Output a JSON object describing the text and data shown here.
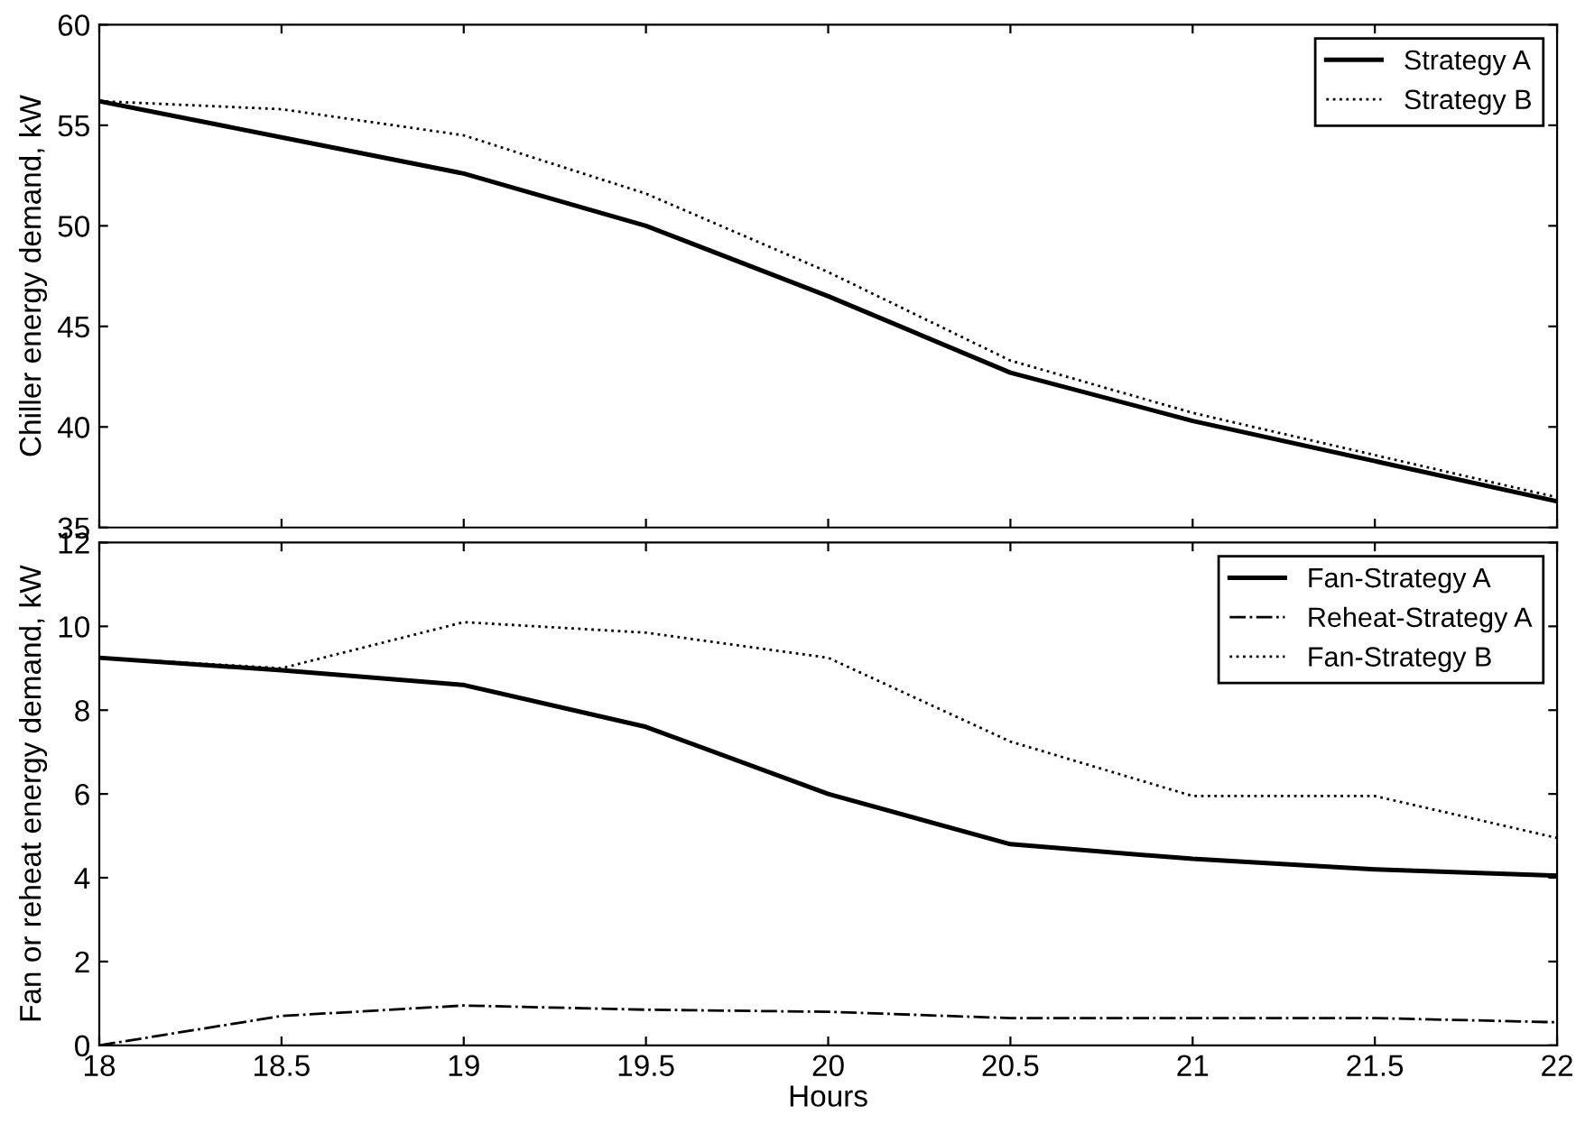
{
  "chart_data": [
    {
      "type": "line",
      "ylabel": "Chiller energy demand, kW",
      "x": [
        18,
        18.5,
        19,
        19.5,
        20,
        20.5,
        21,
        21.5,
        22
      ],
      "xlim": [
        18,
        22
      ],
      "xticks": [
        {
          "value": 18,
          "label": null
        },
        {
          "value": 18.5,
          "label": null
        },
        {
          "value": 19,
          "label": null
        },
        {
          "value": 19.5,
          "label": null
        },
        {
          "value": 20,
          "label": null
        },
        {
          "value": 20.5,
          "label": null
        },
        {
          "value": 21,
          "label": null
        },
        {
          "value": 21.5,
          "label": null
        },
        {
          "value": 22,
          "label": null
        }
      ],
      "ylim": [
        35,
        60
      ],
      "yticks": [
        35,
        40,
        45,
        50,
        55,
        60
      ],
      "tick_labels": "y",
      "legend": "top right",
      "grid": false,
      "series": [
        {
          "name": "Strategy A",
          "color": "#000000",
          "line_style": "solid",
          "values": [
            56.2,
            54.4,
            52.6,
            50.0,
            46.5,
            42.7,
            40.3,
            38.3,
            36.3
          ]
        },
        {
          "name": "Strategy B",
          "color": "#000000",
          "line_style": "dotted",
          "values": [
            56.2,
            55.8,
            54.5,
            51.6,
            47.7,
            43.3,
            40.7,
            38.6,
            36.5
          ]
        }
      ]
    },
    {
      "type": "line",
      "xlabel": "Hours",
      "ylabel": "Fan or reheat energy demand, kW",
      "x": [
        18,
        18.5,
        19,
        19.5,
        20,
        20.5,
        21,
        21.5,
        22
      ],
      "xlim": [
        18,
        22
      ],
      "xticks": [
        18,
        18.5,
        19,
        19.5,
        20,
        20.5,
        21,
        21.5,
        22
      ],
      "ylim": [
        0,
        12
      ],
      "yticks": [
        0,
        2,
        4,
        6,
        8,
        10,
        12
      ],
      "legend": "top right",
      "grid": false,
      "series": [
        {
          "name": "Fan-Strategy A",
          "color": "#000000",
          "line_style": "solid",
          "values": [
            9.25,
            8.95,
            8.6,
            7.6,
            6.0,
            4.8,
            4.45,
            4.2,
            4.05
          ]
        },
        {
          "name": "Reheat-Strategy A",
          "color": "#000000",
          "line_style": "dashdot",
          "values": [
            0,
            0.7,
            0.95,
            0.85,
            0.8,
            0.65,
            0.65,
            0.65,
            0.55
          ]
        },
        {
          "name": "Fan-Strategy B",
          "color": "#000000",
          "line_style": "dotted",
          "values": [
            9.25,
            9.0,
            10.1,
            9.85,
            9.25,
            7.25,
            5.95,
            5.95,
            4.95
          ]
        }
      ]
    }
  ]
}
